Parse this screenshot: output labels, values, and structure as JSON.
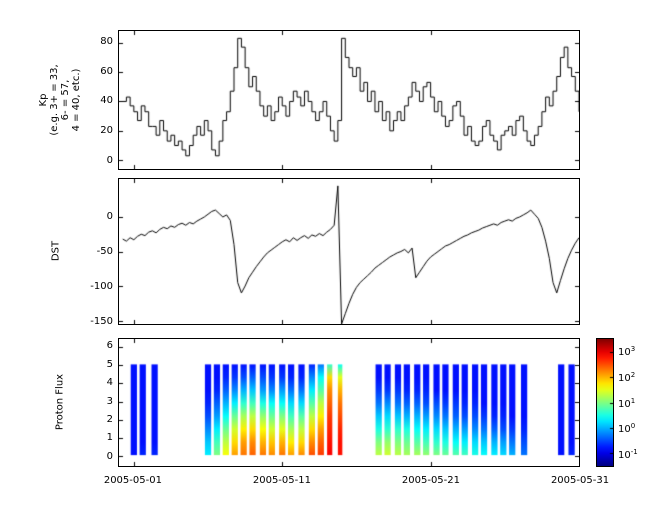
{
  "figure": {
    "background": "#ffffff",
    "axis_color": "#000000",
    "line_color": "#000000"
  },
  "x_axis": {
    "lim": [
      0,
      31
    ],
    "tick_days": [
      1,
      11,
      21,
      31
    ],
    "tick_labels": [
      "2005-05-01",
      "2005-05-11",
      "2005-05-21",
      "2005-05-31"
    ]
  },
  "chart_data": [
    {
      "id": "kp",
      "type": "line",
      "style": "step",
      "ylabel_lines": [
        "Kp",
        "(e.g. 3+ = 33,",
        "6- = 57,",
        "4 = 40, etc.)"
      ],
      "ylim": [
        -6,
        88
      ],
      "yticks": [
        0,
        20,
        40,
        60,
        80
      ],
      "x_start": 0.25,
      "x_step": 0.25,
      "values": [
        40,
        43,
        37,
        33,
        27,
        37,
        33,
        23,
        23,
        17,
        27,
        20,
        13,
        17,
        10,
        13,
        7,
        3,
        10,
        17,
        23,
        17,
        27,
        20,
        7,
        3,
        13,
        27,
        33,
        47,
        63,
        83,
        77,
        63,
        50,
        57,
        47,
        37,
        30,
        37,
        27,
        33,
        43,
        37,
        30,
        40,
        47,
        43,
        37,
        47,
        40,
        33,
        27,
        33,
        40,
        30,
        20,
        13,
        27,
        83,
        70,
        63,
        57,
        63,
        47,
        53,
        40,
        47,
        33,
        40,
        27,
        33,
        20,
        27,
        33,
        27,
        37,
        43,
        53,
        47,
        40,
        50,
        53,
        43,
        33,
        40,
        30,
        23,
        27,
        37,
        40,
        30,
        17,
        23,
        13,
        10,
        13,
        23,
        27,
        17,
        13,
        7,
        17,
        20,
        23,
        17,
        27,
        30,
        20,
        13,
        10,
        17,
        23,
        33,
        43,
        37,
        47,
        57,
        70,
        77,
        63,
        57,
        47,
        33
      ]
    },
    {
      "id": "dst",
      "type": "line",
      "style": "linear",
      "ylabel_lines": [
        "DST"
      ],
      "ylim": [
        -155,
        55
      ],
      "yticks": [
        -150,
        -100,
        -50,
        0
      ],
      "x_start": 0.25,
      "x_step": 0.25,
      "values": [
        -32,
        -35,
        -30,
        -33,
        -28,
        -25,
        -27,
        -22,
        -20,
        -23,
        -18,
        -15,
        -17,
        -13,
        -15,
        -11,
        -9,
        -12,
        -8,
        -10,
        -6,
        -3,
        0,
        4,
        8,
        10,
        5,
        0,
        3,
        -5,
        -40,
        -95,
        -110,
        -100,
        -88,
        -80,
        -72,
        -65,
        -58,
        -52,
        -48,
        -44,
        -40,
        -36,
        -33,
        -36,
        -30,
        -34,
        -30,
        -27,
        -31,
        -26,
        -28,
        -24,
        -27,
        -22,
        -18,
        -12,
        45,
        -155,
        -140,
        -125,
        -112,
        -102,
        -95,
        -90,
        -85,
        -80,
        -74,
        -70,
        -66,
        -62,
        -58,
        -55,
        -52,
        -50,
        -47,
        -52,
        -45,
        -88,
        -80,
        -72,
        -64,
        -58,
        -54,
        -50,
        -46,
        -42,
        -40,
        -37,
        -34,
        -31,
        -28,
        -26,
        -23,
        -21,
        -19,
        -16,
        -14,
        -12,
        -10,
        -12,
        -8,
        -6,
        -4,
        -6,
        -2,
        0,
        3,
        6,
        10,
        4,
        -2,
        -15,
        -35,
        -60,
        -95,
        -110,
        -92,
        -75,
        -60,
        -48,
        -38,
        -30
      ]
    },
    {
      "id": "flux",
      "type": "heatmap",
      "ylabel_lines": [
        "Proton Flux"
      ],
      "ylim": [
        -0.55,
        6.45
      ],
      "yticks": [
        0,
        1,
        2,
        3,
        4,
        5,
        6
      ],
      "value_scale": "log10",
      "vlim": [
        -1.5,
        3.5
      ],
      "cell_y_range": [
        0.05,
        5.05
      ],
      "columns": [
        {
          "x": 1.0,
          "w": 0.42,
          "v": [
            -0.8,
            -0.8,
            -0.8,
            -0.8,
            -0.8,
            -0.8,
            -0.8,
            -0.8
          ]
        },
        {
          "x": 1.6,
          "w": 0.42,
          "v": [
            -0.7,
            -0.8,
            -0.8,
            -0.8,
            -0.8,
            -0.8,
            -0.8,
            -0.8
          ]
        },
        {
          "x": 2.4,
          "w": 0.42,
          "v": [
            -0.7,
            -0.8,
            -0.8,
            -0.8,
            -0.8,
            -0.8,
            -0.8,
            -0.8
          ]
        },
        {
          "x": 6.0,
          "w": 0.42,
          "v": [
            0.3,
            0.1,
            -0.2,
            -0.5,
            -0.7,
            -0.8,
            -0.8,
            -0.8
          ]
        },
        {
          "x": 6.6,
          "w": 0.42,
          "v": [
            1.0,
            0.7,
            0.3,
            -0.1,
            -0.4,
            -0.7,
            -0.8,
            -0.8
          ]
        },
        {
          "x": 7.2,
          "w": 0.42,
          "v": [
            1.6,
            1.3,
            0.9,
            0.4,
            0.0,
            -0.4,
            -0.7,
            -0.8
          ]
        },
        {
          "x": 7.8,
          "w": 0.42,
          "v": [
            2.1,
            1.8,
            1.4,
            0.9,
            0.3,
            -0.2,
            -0.6,
            -0.8
          ]
        },
        {
          "x": 8.4,
          "w": 0.42,
          "v": [
            2.3,
            2.1,
            1.7,
            1.2,
            0.6,
            0.0,
            -0.5,
            -0.8
          ]
        },
        {
          "x": 9.0,
          "w": 0.42,
          "v": [
            2.4,
            2.2,
            1.8,
            1.3,
            0.7,
            0.1,
            -0.4,
            -0.8
          ]
        },
        {
          "x": 9.7,
          "w": 0.42,
          "v": [
            2.3,
            2.0,
            1.6,
            1.1,
            0.5,
            -0.1,
            -0.5,
            -0.8
          ]
        },
        {
          "x": 10.3,
          "w": 0.42,
          "v": [
            2.2,
            1.9,
            1.4,
            0.9,
            0.4,
            -0.2,
            -0.6,
            -0.8
          ]
        },
        {
          "x": 11.0,
          "w": 0.42,
          "v": [
            2.3,
            2.0,
            1.5,
            1.0,
            0.4,
            -0.1,
            -0.6,
            -0.8
          ]
        },
        {
          "x": 11.6,
          "w": 0.42,
          "v": [
            2.1,
            1.7,
            1.2,
            0.7,
            0.2,
            -0.3,
            -0.7,
            -0.8
          ]
        },
        {
          "x": 12.3,
          "w": 0.42,
          "v": [
            2.2,
            1.8,
            1.3,
            0.8,
            0.2,
            -0.3,
            -0.7,
            -0.8
          ]
        },
        {
          "x": 13.0,
          "w": 0.42,
          "v": [
            2.5,
            2.2,
            1.8,
            1.3,
            0.8,
            0.3,
            -0.2,
            -0.7
          ]
        },
        {
          "x": 13.6,
          "w": 0.42,
          "v": [
            2.6,
            2.4,
            2.1,
            1.7,
            1.3,
            0.8,
            0.4,
            -0.3
          ]
        },
        {
          "x": 14.2,
          "w": 0.35,
          "v": [
            2.9,
            2.8,
            2.7,
            2.6,
            2.4,
            2.2,
            1.8,
            0.6
          ]
        },
        {
          "x": 14.9,
          "w": 0.3,
          "v": [
            2.8,
            2.8,
            2.7,
            2.5,
            2.3,
            2.0,
            1.5,
            0.4
          ]
        },
        {
          "x": 17.5,
          "w": 0.42,
          "v": [
            1.3,
            1.0,
            0.5,
            0.1,
            -0.3,
            -0.6,
            -0.8,
            -0.8
          ]
        },
        {
          "x": 18.1,
          "w": 0.42,
          "v": [
            1.4,
            1.1,
            0.6,
            0.2,
            -0.2,
            -0.6,
            -0.8,
            -0.8
          ]
        },
        {
          "x": 18.8,
          "w": 0.42,
          "v": [
            1.3,
            1.0,
            0.6,
            0.1,
            -0.3,
            -0.6,
            -0.8,
            -0.8
          ]
        },
        {
          "x": 19.4,
          "w": 0.42,
          "v": [
            1.2,
            0.9,
            0.5,
            0.0,
            -0.4,
            -0.7,
            -0.8,
            -0.8
          ]
        },
        {
          "x": 20.1,
          "w": 0.42,
          "v": [
            1.2,
            0.8,
            0.4,
            0.0,
            -0.4,
            -0.7,
            -0.8,
            -0.8
          ]
        },
        {
          "x": 20.7,
          "w": 0.42,
          "v": [
            1.1,
            0.7,
            0.3,
            -0.1,
            -0.5,
            -0.7,
            -0.8,
            -0.8
          ]
        },
        {
          "x": 21.4,
          "w": 0.42,
          "v": [
            1.0,
            0.6,
            0.2,
            -0.2,
            -0.5,
            -0.8,
            -0.8,
            -0.8
          ]
        },
        {
          "x": 22.0,
          "w": 0.42,
          "v": [
            0.9,
            0.5,
            0.1,
            -0.3,
            -0.6,
            -0.8,
            -0.8,
            -0.8
          ]
        },
        {
          "x": 22.7,
          "w": 0.42,
          "v": [
            0.8,
            0.4,
            0.0,
            -0.4,
            -0.6,
            -0.8,
            -0.8,
            -0.8
          ]
        },
        {
          "x": 23.3,
          "w": 0.42,
          "v": [
            0.7,
            0.3,
            -0.1,
            -0.5,
            -0.7,
            -0.8,
            -0.8,
            -0.8
          ]
        },
        {
          "x": 24.0,
          "w": 0.42,
          "v": [
            0.5,
            0.2,
            -0.2,
            -0.5,
            -0.7,
            -0.8,
            -0.8,
            -0.8
          ]
        },
        {
          "x": 24.6,
          "w": 0.42,
          "v": [
            0.4,
            0.1,
            -0.3,
            -0.6,
            -0.8,
            -0.8,
            -0.8,
            -0.8
          ]
        },
        {
          "x": 25.3,
          "w": 0.42,
          "v": [
            0.3,
            0.0,
            -0.4,
            -0.7,
            -0.8,
            -0.8,
            -0.8,
            -0.8
          ]
        },
        {
          "x": 25.9,
          "w": 0.42,
          "v": [
            0.2,
            -0.1,
            -0.5,
            -0.7,
            -0.8,
            -0.8,
            -0.8,
            -0.8
          ]
        },
        {
          "x": 26.5,
          "w": 0.42,
          "v": [
            0.0,
            -0.3,
            -0.6,
            -0.8,
            -0.8,
            -0.8,
            -0.8,
            -0.8
          ]
        },
        {
          "x": 27.3,
          "w": 0.42,
          "v": [
            -0.3,
            -0.5,
            -0.7,
            -0.8,
            -0.8,
            -0.8,
            -0.8,
            -0.8
          ]
        },
        {
          "x": 29.8,
          "w": 0.42,
          "v": [
            -0.8,
            -0.8,
            -0.8,
            -0.8,
            -0.8,
            -0.8,
            -0.8,
            -0.8
          ]
        },
        {
          "x": 30.5,
          "w": 0.42,
          "v": [
            -0.7,
            -0.8,
            -0.8,
            -0.8,
            -0.8,
            -0.8,
            -0.8,
            -0.8
          ]
        }
      ],
      "colorbar": {
        "base": "10",
        "tick_exponents": [
          3,
          2,
          1,
          0,
          -1
        ]
      }
    }
  ]
}
